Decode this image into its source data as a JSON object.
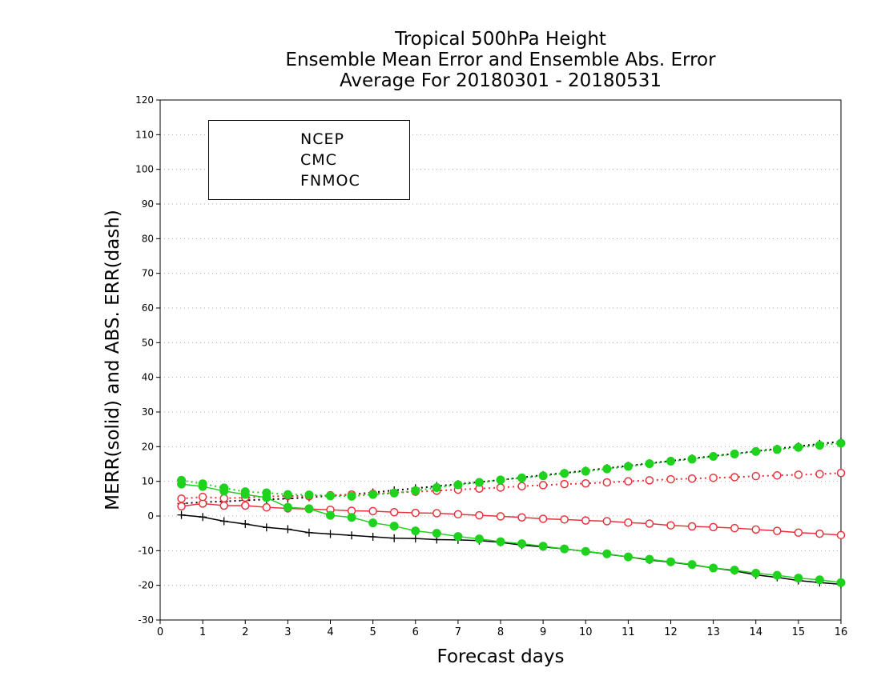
{
  "chart_data": {
    "type": "line",
    "title": [
      "Tropical 500hPa Height",
      "Ensemble Mean Error and Ensemble Abs. Error",
      "Average For 20180301 - 20180531"
    ],
    "xlabel": "Forecast days",
    "ylabel": "MERR(solid) and ABS. ERR(dash)",
    "xlim": [
      0,
      16
    ],
    "ylim": [
      -30,
      120
    ],
    "xticks": [
      0,
      1,
      2,
      3,
      4,
      5,
      6,
      7,
      8,
      9,
      10,
      11,
      12,
      13,
      14,
      15,
      16
    ],
    "yticks": [
      -30,
      -20,
      -10,
      0,
      10,
      20,
      30,
      40,
      50,
      60,
      70,
      80,
      90,
      100,
      110,
      120
    ],
    "grid": "horizontal dotted",
    "legend": {
      "placement": "top-left",
      "entries": [
        "NCEP",
        "CMC",
        "FNMOC"
      ]
    },
    "x": [
      0.5,
      1,
      1.5,
      2,
      2.5,
      3,
      3.5,
      4,
      4.5,
      5,
      5.5,
      6,
      6.5,
      7,
      7.5,
      8,
      8.5,
      9,
      9.5,
      10,
      10.5,
      11,
      11.5,
      12,
      12.5,
      13,
      13.5,
      14,
      14.5,
      15,
      15.5,
      16
    ],
    "series": [
      {
        "name": "NCEP",
        "metric": "MERR",
        "style": "solid",
        "marker": "plus",
        "color": "#000000",
        "values": [
          0.3,
          -0.3,
          -1.5,
          -2.3,
          -3.3,
          -3.8,
          -4.8,
          -5.2,
          -5.6,
          -6.0,
          -6.4,
          -6.5,
          -6.8,
          -6.9,
          -7.1,
          -7.6,
          -8.4,
          -8.9,
          -9.5,
          -10.2,
          -11.0,
          -11.8,
          -12.7,
          -13.3,
          -14.1,
          -15.0,
          -15.8,
          -17.0,
          -17.7,
          -18.6,
          -19.2,
          -19.7
        ]
      },
      {
        "name": "NCEP",
        "metric": "ABS. ERR",
        "style": "dash",
        "marker": "plus",
        "color": "#000000",
        "values": [
          3.6,
          4.0,
          4.2,
          4.5,
          4.8,
          5.0,
          5.4,
          5.8,
          6.2,
          6.8,
          7.4,
          8.0,
          8.6,
          9.2,
          9.8,
          10.4,
          11.1,
          11.8,
          12.4,
          13.1,
          13.8,
          14.5,
          15.2,
          15.9,
          16.6,
          17.3,
          18.0,
          18.7,
          19.4,
          20.1,
          20.8,
          21.5
        ]
      },
      {
        "name": "CMC",
        "metric": "MERR",
        "style": "solid",
        "marker": "circle",
        "color": "#e8323c",
        "values": [
          2.8,
          3.6,
          3.0,
          3.0,
          2.5,
          2.2,
          2.0,
          1.8,
          1.5,
          1.4,
          1.1,
          0.9,
          0.8,
          0.5,
          0.2,
          -0.1,
          -0.4,
          -0.8,
          -1.0,
          -1.3,
          -1.5,
          -1.9,
          -2.2,
          -2.7,
          -3.0,
          -3.2,
          -3.5,
          -3.9,
          -4.3,
          -4.8,
          -5.1,
          -5.5
        ]
      },
      {
        "name": "CMC",
        "metric": "ABS. ERR",
        "style": "dash",
        "marker": "circle",
        "color": "#e8323c",
        "values": [
          5.0,
          5.5,
          5.1,
          5.3,
          5.6,
          5.8,
          5.7,
          6.0,
          6.2,
          6.4,
          6.7,
          7.0,
          7.3,
          7.6,
          7.9,
          8.2,
          8.6,
          8.9,
          9.2,
          9.4,
          9.7,
          10.0,
          10.3,
          10.6,
          10.8,
          11.0,
          11.2,
          11.5,
          11.7,
          11.9,
          12.1,
          12.4
        ]
      },
      {
        "name": "FNMOC",
        "metric": "MERR",
        "style": "solid",
        "marker": "dot",
        "color": "#1ed21e",
        "values": [
          9.2,
          8.5,
          7.2,
          6.2,
          5.3,
          2.5,
          2.1,
          0.2,
          -0.4,
          -2.0,
          -2.9,
          -4.3,
          -5.0,
          -5.9,
          -6.6,
          -7.4,
          -8.0,
          -8.7,
          -9.5,
          -10.2,
          -10.9,
          -11.8,
          -12.5,
          -13.2,
          -14.0,
          -15.0,
          -15.6,
          -16.5,
          -17.1,
          -17.9,
          -18.4,
          -19.2
        ]
      },
      {
        "name": "FNMOC",
        "metric": "ABS. ERR",
        "style": "dash",
        "marker": "dot",
        "color": "#1ed21e",
        "values": [
          10.3,
          9.3,
          8.1,
          7.0,
          6.7,
          6.2,
          6.1,
          5.8,
          5.7,
          6.2,
          6.6,
          7.3,
          8.2,
          9.0,
          9.7,
          10.4,
          11.0,
          11.6,
          12.3,
          12.9,
          13.6,
          14.3,
          15.1,
          15.8,
          16.4,
          17.2,
          17.9,
          18.6,
          19.2,
          19.8,
          20.4,
          21.0
        ]
      }
    ]
  }
}
